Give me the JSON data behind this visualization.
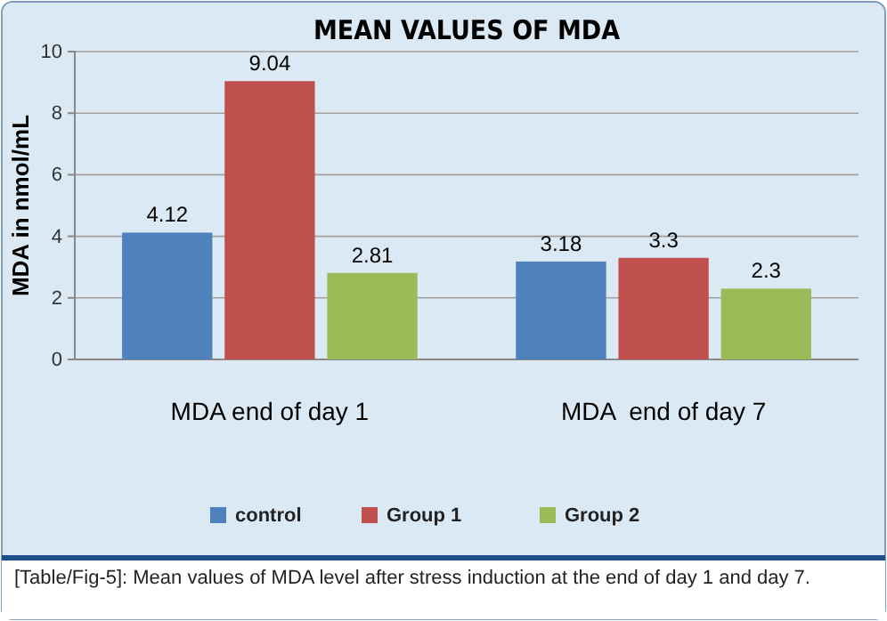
{
  "chart_data": {
    "type": "bar",
    "title": "MEAN VALUES OF MDA",
    "ylabel": "MDA in nmol/mL",
    "categories": [
      "MDA end of day 1",
      "MDA  end of day 7"
    ],
    "series": [
      {
        "name": "control",
        "color": "#4f81bd",
        "values": [
          4.12,
          3.18
        ]
      },
      {
        "name": "Group 1",
        "color": "#c0504d",
        "values": [
          9.04,
          3.3
        ]
      },
      {
        "name": "Group 2",
        "color": "#9bbb59",
        "values": [
          2.81,
          2.3
        ]
      }
    ],
    "ylim": [
      0,
      10
    ],
    "yticks": [
      0,
      2,
      4,
      6,
      8,
      10
    ],
    "grid": "y",
    "legend": "bottom",
    "data_labels": true,
    "annotations": [
      "[Table/Fig-5]: Mean values of MDA level after stress induction at the end of day 1 and day 7."
    ]
  }
}
